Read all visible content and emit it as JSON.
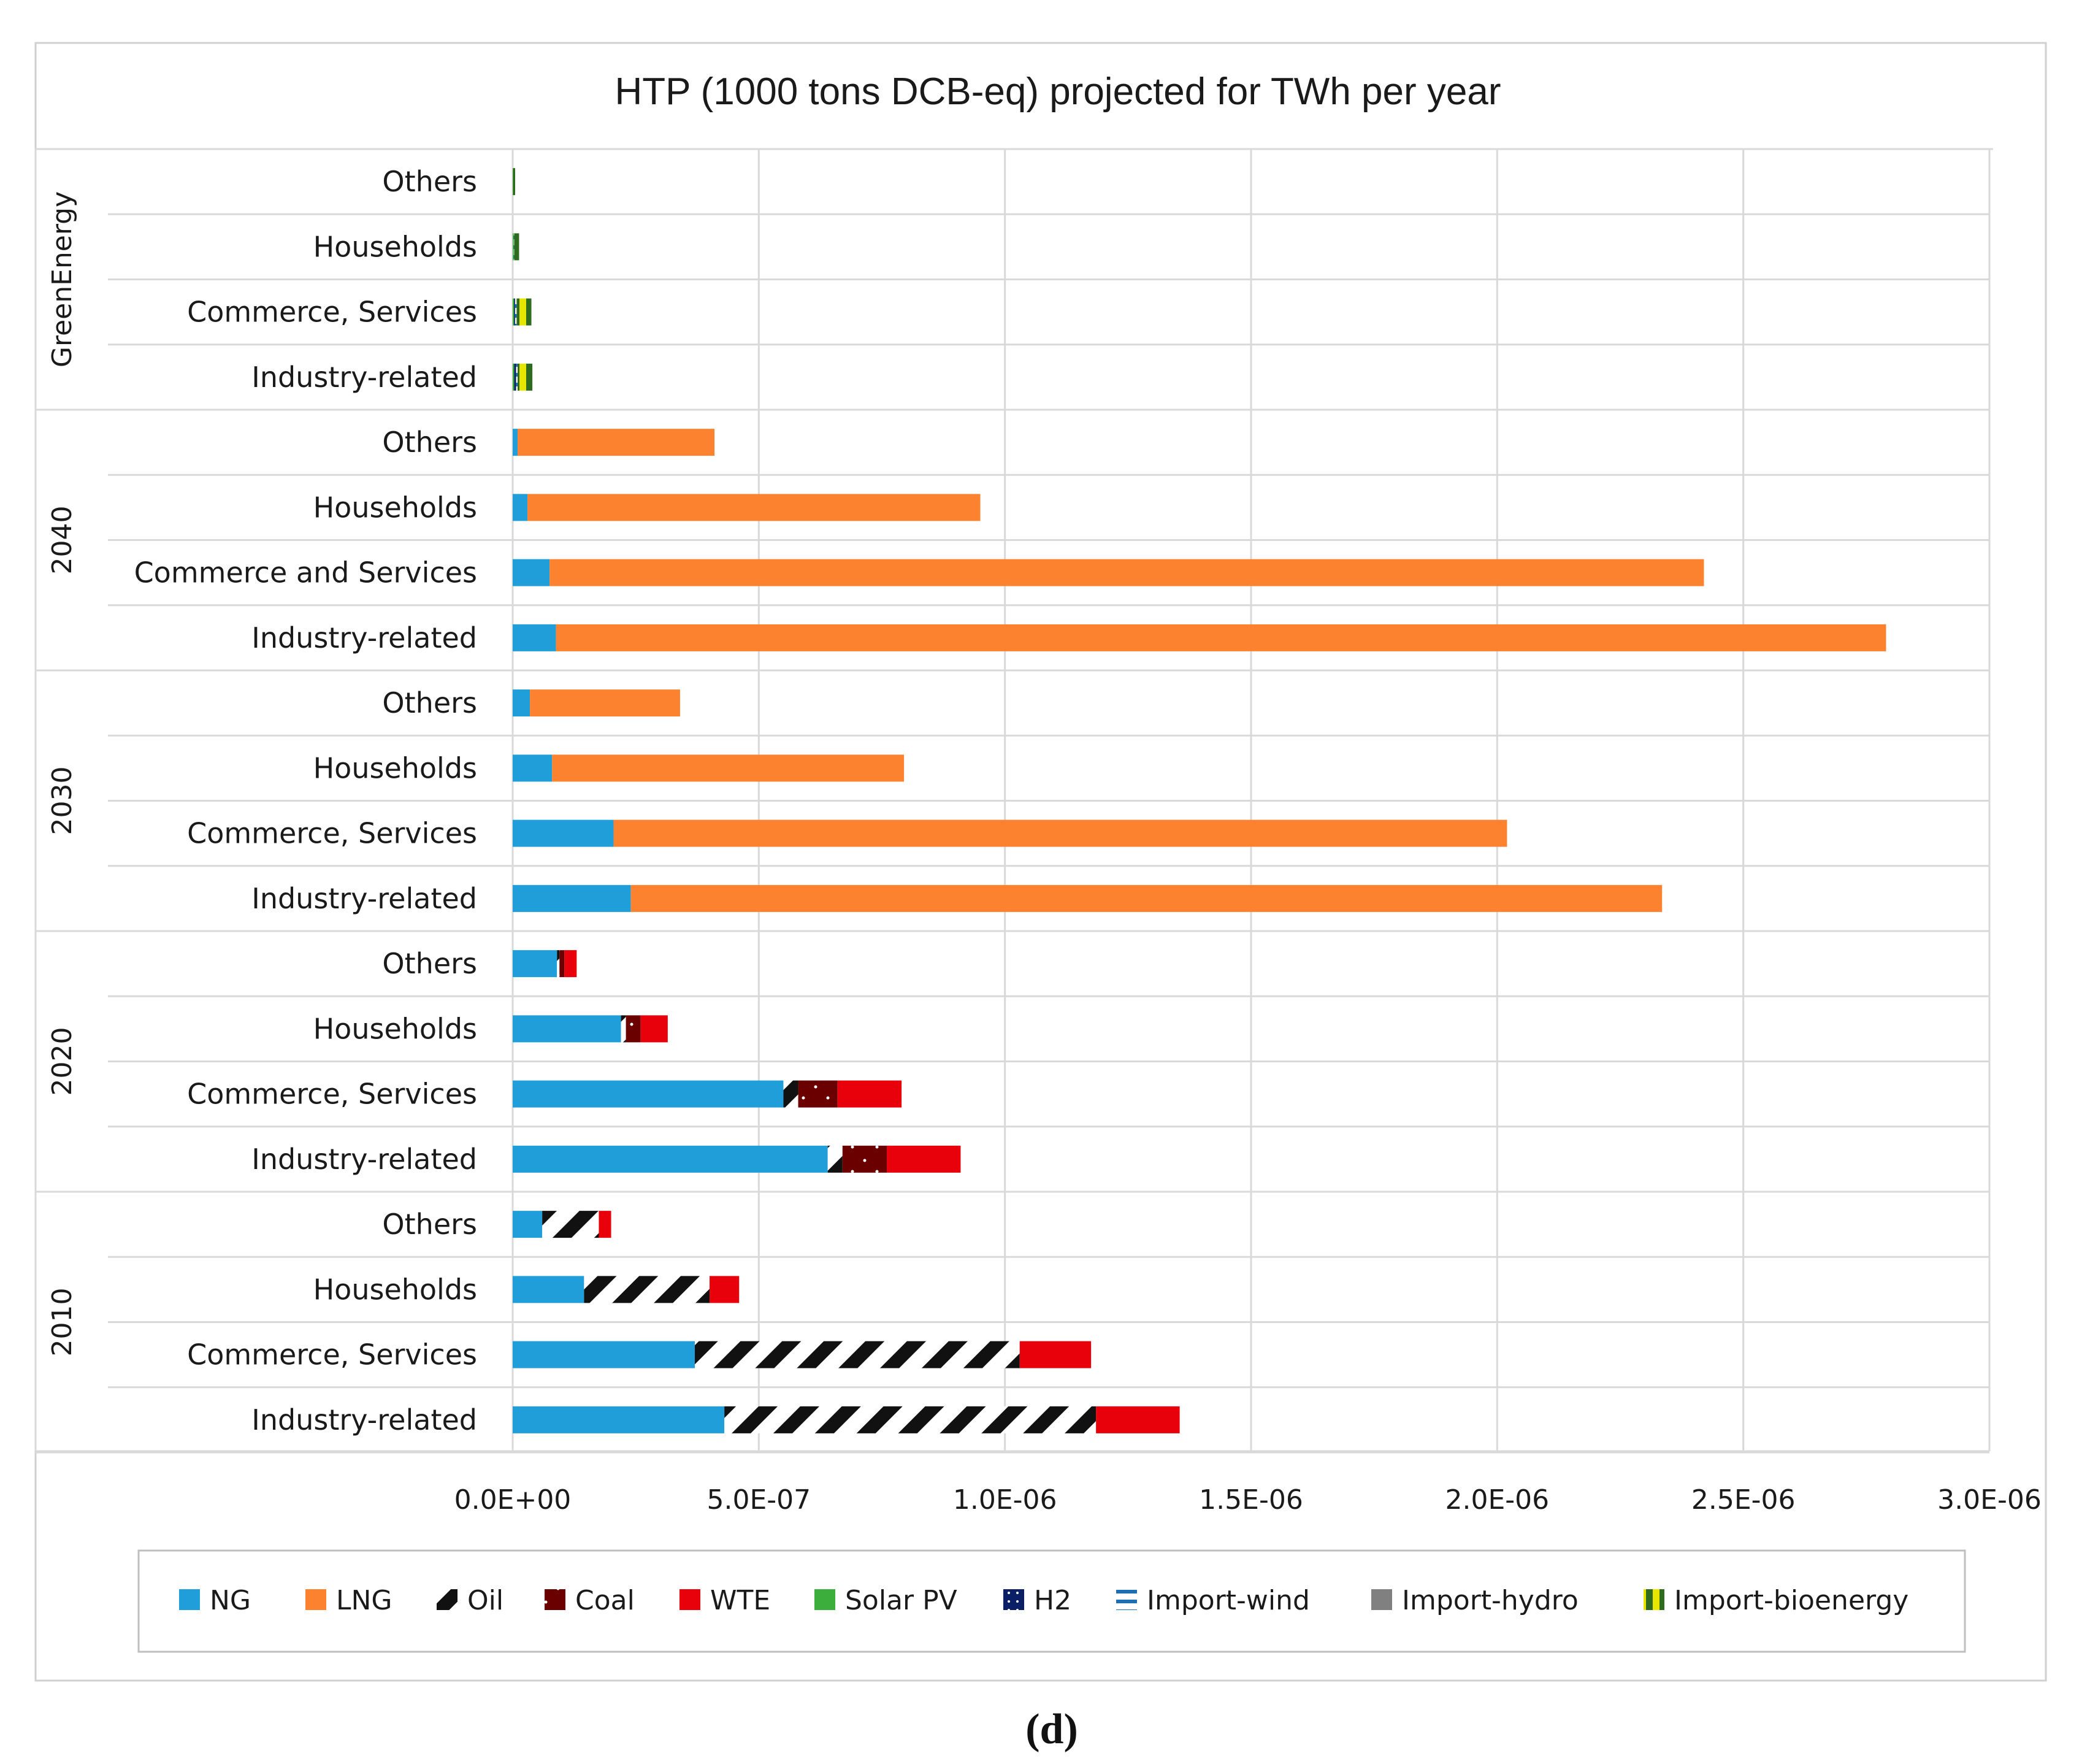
{
  "colors": {
    "NG": "#1f9ed9",
    "LNG": "#fd8230",
    "Oil": "#111111",
    "Coal": "#6b0000",
    "WTE": "#e8000b",
    "Solar PV": "#3cae3c",
    "H2": "#0a1f66",
    "Import-wind": "#1f6fb5",
    "Import-hydro": "#808080",
    "Import-bioenergy": "#2f6b1f",
    "accent_yellow": "#e6e600"
  },
  "caption": "(d)",
  "chart_data": {
    "type": "bar",
    "orientation": "horizontal",
    "stacked": true,
    "title": "HTP (1000 tons DCB-eq) projected for TWh per year",
    "xlabel": "",
    "ylabel": "",
    "xlim": [
      0,
      3e-06
    ],
    "xticks": [
      0,
      5e-07,
      1e-06,
      1.5e-06,
      2e-06,
      2.5e-06,
      3e-06
    ],
    "xtick_labels": [
      "0.0E+00",
      "5.0E-07",
      "1.0E-06",
      "1.5E-06",
      "2.0E-06",
      "2.5E-06",
      "3.0E-06"
    ],
    "grid": true,
    "legend_position": "bottom",
    "series_names": [
      "NG",
      "LNG",
      "Oil",
      "Coal",
      "WTE",
      "Solar PV",
      "H2",
      "Import-wind",
      "Import-hydro",
      "Import-bioenergy"
    ],
    "groups": [
      {
        "name": "GreenEnergy",
        "categories": [
          {
            "label": "Others",
            "values": {
              "NG": 0,
              "LNG": 0,
              "Oil": 0,
              "Coal": 0,
              "WTE": 0,
              "Solar PV": 1e-09,
              "H2": 0,
              "Import-wind": 0,
              "Import-hydro": 0,
              "Import-bioenergy": 4e-09
            }
          },
          {
            "label": "Households",
            "values": {
              "NG": 0,
              "LNG": 0,
              "Oil": 0,
              "Coal": 0,
              "WTE": 0,
              "Solar PV": 2e-09,
              "H2": 0,
              "Import-wind": 1e-09,
              "Import-hydro": 0,
              "Import-bioenergy": 1e-08
            }
          },
          {
            "label": "Commerce, Services",
            "values": {
              "NG": 0,
              "LNG": 0,
              "Oil": 0,
              "Coal": 0,
              "WTE": 0,
              "Solar PV": 3e-09,
              "H2": 2e-09,
              "Import-wind": 3e-09,
              "Import-hydro": 0,
              "Import-bioenergy": 3e-08
            }
          },
          {
            "label": "Industry-related",
            "values": {
              "NG": 0,
              "LNG": 0,
              "Oil": 0,
              "Coal": 0,
              "WTE": 0,
              "Solar PV": 3e-09,
              "H2": 4e-09,
              "Import-wind": 3e-09,
              "Import-hydro": 0,
              "Import-bioenergy": 3e-08
            }
          }
        ]
      },
      {
        "name": "2040",
        "categories": [
          {
            "label": "Others",
            "values": {
              "NG": 1e-08,
              "LNG": 4e-07,
              "Oil": 0,
              "Coal": 0,
              "WTE": 0,
              "Solar PV": 0,
              "H2": 0,
              "Import-wind": 0,
              "Import-hydro": 0,
              "Import-bioenergy": 0
            }
          },
          {
            "label": "Households",
            "values": {
              "NG": 3e-08,
              "LNG": 9.2e-07,
              "Oil": 0,
              "Coal": 0,
              "WTE": 0,
              "Solar PV": 0,
              "H2": 0,
              "Import-wind": 0,
              "Import-hydro": 0,
              "Import-bioenergy": 0
            }
          },
          {
            "label": "Commerce and Services",
            "values": {
              "NG": 7.5e-08,
              "LNG": 2.345e-06,
              "Oil": 0,
              "Coal": 0,
              "WTE": 0,
              "Solar PV": 0,
              "H2": 0,
              "Import-wind": 0,
              "Import-hydro": 0,
              "Import-bioenergy": 0
            }
          },
          {
            "label": "Industry-related",
            "values": {
              "NG": 8.8e-08,
              "LNG": 2.702e-06,
              "Oil": 0,
              "Coal": 0,
              "WTE": 0,
              "Solar PV": 0,
              "H2": 0,
              "Import-wind": 0,
              "Import-hydro": 0,
              "Import-bioenergy": 0
            }
          }
        ]
      },
      {
        "name": "2030",
        "categories": [
          {
            "label": "Others",
            "values": {
              "NG": 3.5e-08,
              "LNG": 3.05e-07,
              "Oil": 0,
              "Coal": 0,
              "WTE": 0,
              "Solar PV": 0,
              "H2": 0,
              "Import-wind": 0,
              "Import-hydro": 0,
              "Import-bioenergy": 0
            }
          },
          {
            "label": "Households",
            "values": {
              "NG": 8e-08,
              "LNG": 7.15e-07,
              "Oil": 0,
              "Coal": 0,
              "WTE": 0,
              "Solar PV": 0,
              "H2": 0,
              "Import-wind": 0,
              "Import-hydro": 0,
              "Import-bioenergy": 0
            }
          },
          {
            "label": "Commerce, Services",
            "values": {
              "NG": 2.05e-07,
              "LNG": 1.815e-06,
              "Oil": 0,
              "Coal": 0,
              "WTE": 0,
              "Solar PV": 0,
              "H2": 0,
              "Import-wind": 0,
              "Import-hydro": 0,
              "Import-bioenergy": 0
            }
          },
          {
            "label": "Industry-related",
            "values": {
              "NG": 2.4e-07,
              "LNG": 2.095e-06,
              "Oil": 0,
              "Coal": 0,
              "WTE": 0,
              "Solar PV": 0,
              "H2": 0,
              "Import-wind": 0,
              "Import-hydro": 0,
              "Import-bioenergy": 0
            }
          }
        ]
      },
      {
        "name": "2020",
        "categories": [
          {
            "label": "Others",
            "values": {
              "NG": 9e-08,
              "LNG": 0,
              "Oil": 5e-09,
              "Coal": 1e-08,
              "WTE": 2.5e-08,
              "Solar PV": 0,
              "H2": 0,
              "Import-wind": 0,
              "Import-hydro": 0,
              "Import-bioenergy": 0
            }
          },
          {
            "label": "Households",
            "values": {
              "NG": 2.2e-07,
              "LNG": 0,
              "Oil": 1e-08,
              "Coal": 3e-08,
              "WTE": 5.5e-08,
              "Solar PV": 0,
              "H2": 0,
              "Import-wind": 0,
              "Import-hydro": 0,
              "Import-bioenergy": 0
            }
          },
          {
            "label": "Commerce, Services",
            "values": {
              "NG": 5.5e-07,
              "LNG": 0,
              "Oil": 3e-08,
              "Coal": 8e-08,
              "WTE": 1.3e-07,
              "Solar PV": 0,
              "H2": 0,
              "Import-wind": 0,
              "Import-hydro": 0,
              "Import-bioenergy": 0
            }
          },
          {
            "label": "Industry-related",
            "values": {
              "NG": 6.4e-07,
              "LNG": 0,
              "Oil": 3e-08,
              "Coal": 9e-08,
              "WTE": 1.5e-07,
              "Solar PV": 0,
              "H2": 0,
              "Import-wind": 0,
              "Import-hydro": 0,
              "Import-bioenergy": 0
            }
          }
        ]
      },
      {
        "name": "2010",
        "categories": [
          {
            "label": "Others",
            "values": {
              "NG": 6e-08,
              "LNG": 0,
              "Oil": 1.15e-07,
              "Coal": 0,
              "WTE": 2.5e-08,
              "Solar PV": 0,
              "H2": 0,
              "Import-wind": 0,
              "Import-hydro": 0,
              "Import-bioenergy": 0
            }
          },
          {
            "label": "Households",
            "values": {
              "NG": 1.45e-07,
              "LNG": 0,
              "Oil": 2.55e-07,
              "Coal": 0,
              "WTE": 6e-08,
              "Solar PV": 0,
              "H2": 0,
              "Import-wind": 0,
              "Import-hydro": 0,
              "Import-bioenergy": 0
            }
          },
          {
            "label": "Commerce, Services",
            "values": {
              "NG": 3.7e-07,
              "LNG": 0,
              "Oil": 6.6e-07,
              "Coal": 0,
              "WTE": 1.45e-07,
              "Solar PV": 0,
              "H2": 0,
              "Import-wind": 0,
              "Import-hydro": 0,
              "Import-bioenergy": 0
            }
          },
          {
            "label": "Industry-related",
            "values": {
              "NG": 4.3e-07,
              "LNG": 0,
              "Oil": 7.55e-07,
              "Coal": 0,
              "WTE": 1.7e-07,
              "Solar PV": 0,
              "H2": 0,
              "Import-wind": 0,
              "Import-hydro": 0,
              "Import-bioenergy": 0
            }
          }
        ]
      }
    ]
  }
}
